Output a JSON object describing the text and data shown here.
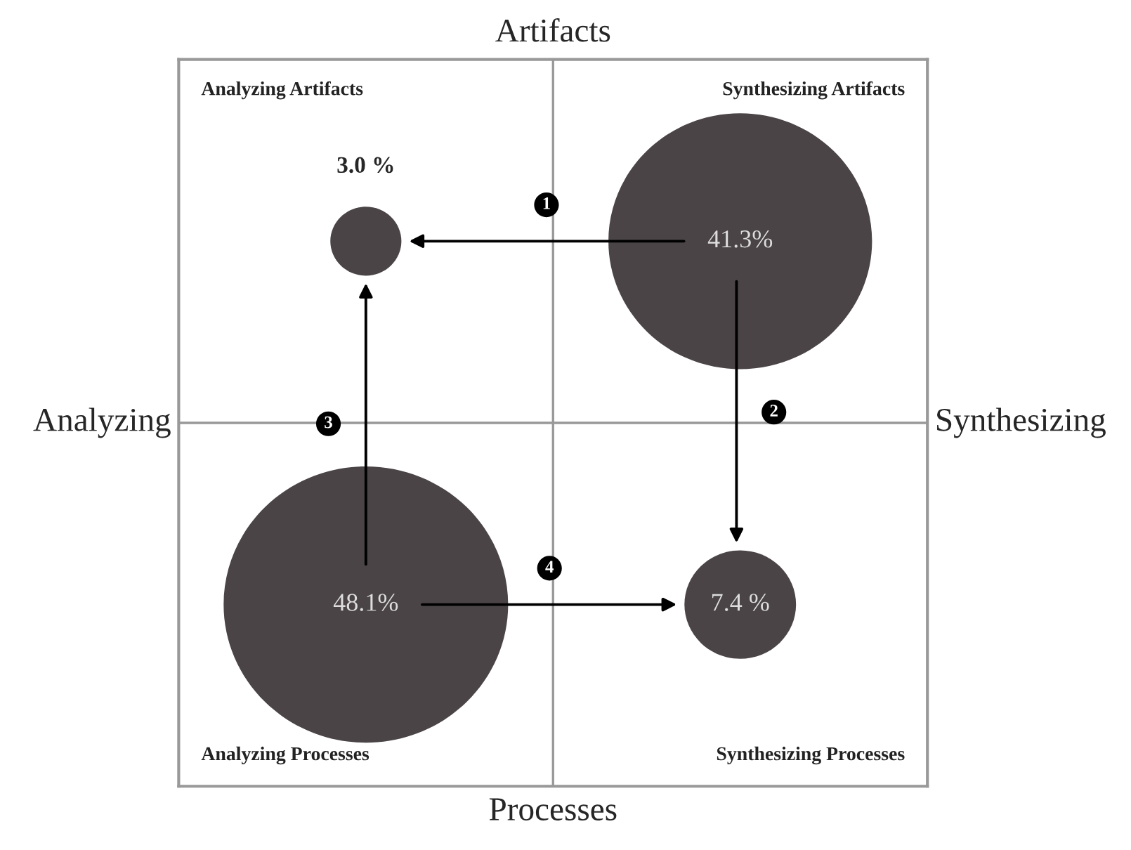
{
  "chart_data": {
    "type": "other",
    "categories": [
      "Analyzing Artifacts",
      "Synthesizing Artifacts",
      "Analyzing Processes",
      "Synthesizing Processes"
    ],
    "values": [
      3.0,
      41.3,
      48.1,
      7.4
    ],
    "value_labels": [
      "3.0 %",
      "41.3%",
      "48.1%",
      "7.4 %"
    ],
    "color": "#4a4446",
    "annotations": [
      "Artifacts",
      "Processes",
      "Analyzing",
      "Synthesizing",
      "1",
      "2",
      "3",
      "4"
    ]
  }
}
